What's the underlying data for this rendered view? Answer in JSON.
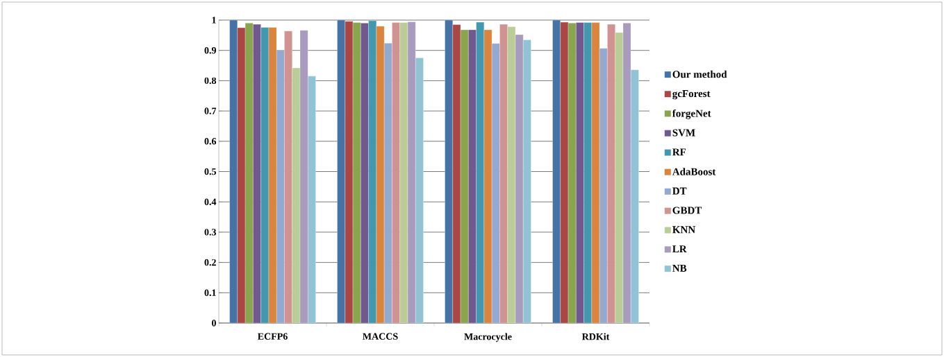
{
  "chart_data": {
    "type": "bar",
    "categories": [
      "ECFP6",
      "MACCS",
      "Macrocycle",
      "RDKit"
    ],
    "series": [
      {
        "name": "Our method",
        "color": "#4572a7",
        "values": [
          1.0,
          1.0,
          1.0,
          1.0
        ]
      },
      {
        "name": "gcForest",
        "color": "#aa4643",
        "values": [
          0.975,
          0.996,
          0.985,
          0.993
        ]
      },
      {
        "name": "forgeNet",
        "color": "#89a54e",
        "values": [
          0.99,
          0.992,
          0.968,
          0.99
        ]
      },
      {
        "name": "SVM",
        "color": "#71588f",
        "values": [
          0.986,
          0.99,
          0.968,
          0.992
        ]
      },
      {
        "name": "RF",
        "color": "#4198af",
        "values": [
          0.976,
          0.998,
          0.993,
          0.992
        ]
      },
      {
        "name": "AdaBoost",
        "color": "#db843d",
        "values": [
          0.976,
          0.98,
          0.968,
          0.992
        ]
      },
      {
        "name": "DT",
        "color": "#93a9cf",
        "values": [
          0.9,
          0.924,
          0.923,
          0.907
        ]
      },
      {
        "name": "GBDT",
        "color": "#d19392",
        "values": [
          0.964,
          0.992,
          0.986,
          0.986
        ]
      },
      {
        "name": "KNN",
        "color": "#b9cd96",
        "values": [
          0.842,
          0.992,
          0.978,
          0.959
        ]
      },
      {
        "name": "LR",
        "color": "#a99bbd",
        "values": [
          0.966,
          0.994,
          0.952,
          0.99
        ]
      },
      {
        "name": "NB",
        "color": "#92c3d5",
        "values": [
          0.815,
          0.875,
          0.935,
          0.836
        ]
      }
    ],
    "ylim": [
      0,
      1
    ],
    "yticks": [
      0,
      0.1,
      0.2,
      0.3,
      0.4,
      0.5,
      0.6,
      0.7,
      0.8,
      0.9,
      1
    ],
    "grid": "y",
    "legend": "right"
  }
}
